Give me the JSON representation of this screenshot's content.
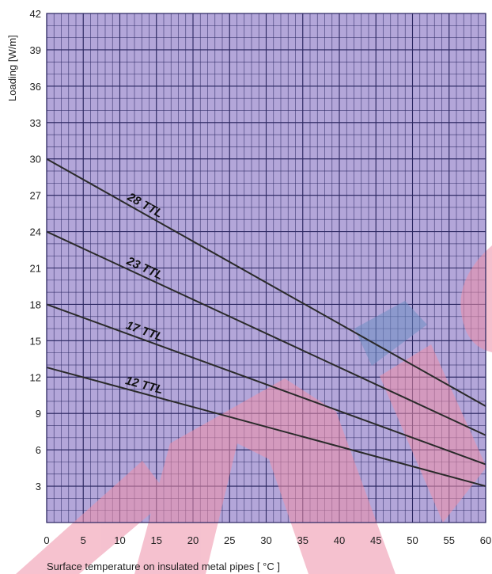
{
  "chart_data": {
    "type": "line",
    "xlabel": "Surface temperature on insulated metal pipes [ °C ]",
    "ylabel": "Loading [W/m]",
    "xlim": [
      0,
      60
    ],
    "ylim": [
      0,
      42
    ],
    "x_ticks": [
      "0",
      "5",
      "10",
      "15",
      "20",
      "25",
      "30",
      "35",
      "40",
      "45",
      "50",
      "55",
      "60"
    ],
    "y_ticks": [
      "3",
      "6",
      "9",
      "12",
      "15",
      "18",
      "21",
      "24",
      "27",
      "30",
      "33",
      "36",
      "39",
      "42"
    ],
    "grid": true,
    "series": [
      {
        "name": "28 TTL",
        "x": [
          0,
          60
        ],
        "y": [
          30,
          9.6
        ]
      },
      {
        "name": "23 TTL",
        "x": [
          0,
          60
        ],
        "y": [
          24,
          7.2
        ]
      },
      {
        "name": "17 TTL",
        "x": [
          0,
          60
        ],
        "y": [
          18,
          4.8
        ]
      },
      {
        "name": "12 TTL",
        "x": [
          0,
          60
        ],
        "y": [
          12.8,
          3.0
        ]
      }
    ]
  },
  "style": {
    "plot_bg": "#b3a6d9",
    "grid_color": "#2a2660",
    "line_color": "#2a2a2a",
    "watermark_red": "#ee8fa8",
    "watermark_blue": "#6e8fc4"
  }
}
